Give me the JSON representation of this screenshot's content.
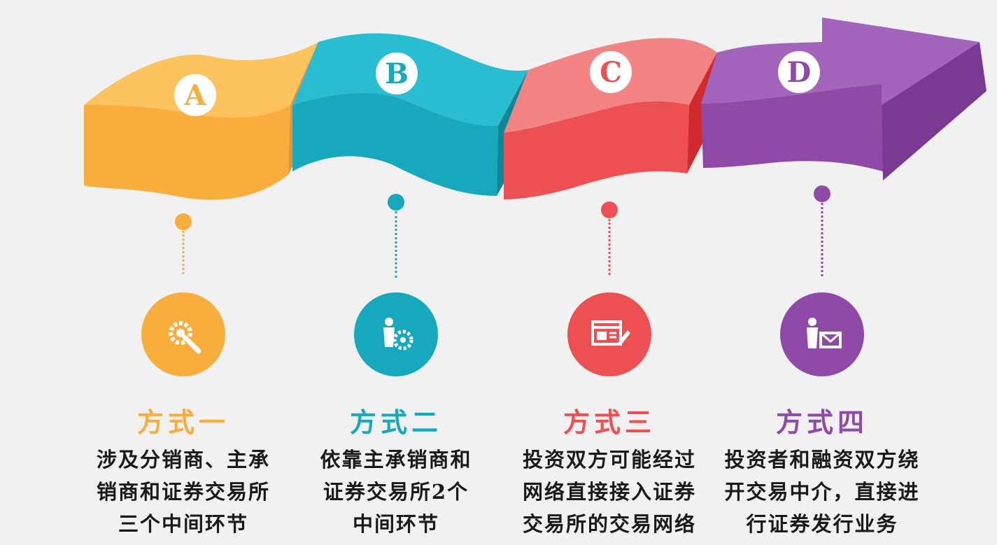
{
  "steps": [
    {
      "letter": "A",
      "title": "方式一",
      "desc": "涉及分销商、主承\n销商和证券交易所\n三个中间环节",
      "color": "#f8ad3c",
      "dark": "#e8942a",
      "icon": "wrench-gear-icon"
    },
    {
      "letter": "B",
      "title": "方式二",
      "desc": "依靠主承销商和\n证券交易所2个\n中间环节",
      "color": "#16a9bd",
      "dark": "#0f8c9e",
      "icon": "worker-gear-icon"
    },
    {
      "letter": "C",
      "title": "方式三",
      "desc": "投资双方可能经过\n网络直接接入证券\n交易所的交易网络",
      "color": "#f06a6c",
      "dark": "#e2383c",
      "icon": "webpage-edit-icon"
    },
    {
      "letter": "D",
      "title": "方式四",
      "desc": "投资者和融资双方绕\n开交易中介，直接进\n行证券发行业务",
      "color": "#8e4aa6",
      "dark": "#6e2f88",
      "icon": "person-mail-icon"
    }
  ]
}
